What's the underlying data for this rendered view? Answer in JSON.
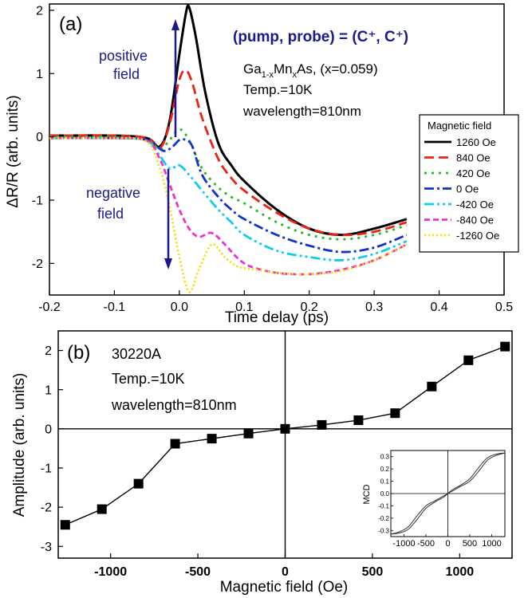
{
  "colors": {
    "annotation": "#1a1a8c",
    "axis": "#000000",
    "arrow": "#1a1a8c"
  },
  "chart_data": [
    {
      "panel": "(a)",
      "type": "line",
      "title": "(pump, probe) = (C⁺, C⁺)",
      "xlabel": "Time delay (ps)",
      "ylabel": "ΔR/R (arb. units)",
      "xlim": [
        -0.2,
        0.5
      ],
      "ylim": [
        -2.5,
        2.1
      ],
      "x_ticks": [
        -0.2,
        -0.1,
        0.0,
        0.1,
        0.2,
        0.3,
        0.4,
        0.5
      ],
      "x_tick_labels": [
        "-0.2",
        "-0.1",
        "0.0",
        "0.1",
        "0.2",
        "0.3",
        "0.4",
        "0.5"
      ],
      "y_ticks": [
        -2,
        -1,
        0,
        1,
        2
      ],
      "y_tick_labels": [
        "-2",
        "-1",
        "0",
        "1",
        "2"
      ],
      "info_lines": [
        "Ga",
        "Mn",
        "As, (x=0.059)",
        "Temp.=10K",
        "wavelength=810nm"
      ],
      "positive_label": [
        "positive",
        "field"
      ],
      "negative_label": [
        "negative",
        "field"
      ],
      "legend_title": "Magnetic field",
      "legend_position": "right",
      "series": [
        {
          "name": "1260 Oe",
          "color": "#000000",
          "dash": "",
          "x": [
            -0.2,
            -0.1,
            -0.05,
            -0.03,
            -0.015,
            0.0,
            0.01,
            0.015,
            0.025,
            0.04,
            0.06,
            0.08,
            0.1,
            0.15,
            0.2,
            0.25,
            0.3,
            0.35
          ],
          "y": [
            0.02,
            0.02,
            -0.02,
            -0.15,
            0.25,
            1.3,
            1.95,
            2.05,
            1.6,
            0.7,
            -0.1,
            -0.45,
            -0.7,
            -1.15,
            -1.45,
            -1.55,
            -1.45,
            -1.3
          ]
        },
        {
          "name": "840 Oe",
          "color": "#ee2211",
          "dash": "12 6",
          "x": [
            -0.2,
            -0.1,
            -0.05,
            -0.03,
            -0.015,
            0.0,
            0.01,
            0.02,
            0.035,
            0.06,
            0.08,
            0.1,
            0.15,
            0.2,
            0.25,
            0.3,
            0.35
          ],
          "y": [
            0.02,
            0.02,
            -0.02,
            -0.18,
            0.2,
            0.9,
            1.05,
            0.85,
            0.3,
            -0.35,
            -0.65,
            -0.85,
            -1.2,
            -1.45,
            -1.55,
            -1.5,
            -1.35
          ]
        },
        {
          "name": "420 Oe",
          "color": "#22bb22",
          "dash": "3 6",
          "x": [
            -0.2,
            -0.1,
            -0.05,
            -0.03,
            -0.015,
            0.0,
            0.015,
            0.035,
            0.06,
            0.08,
            0.1,
            0.15,
            0.2,
            0.25,
            0.3,
            0.35
          ],
          "y": [
            0.0,
            0.0,
            -0.05,
            -0.2,
            -0.05,
            0.12,
            -0.05,
            -0.5,
            -0.8,
            -0.95,
            -1.05,
            -1.35,
            -1.55,
            -1.62,
            -1.55,
            -1.4
          ]
        },
        {
          "name": "0 Oe",
          "color": "#1133cc",
          "dash": "12 4 3 4",
          "x": [
            -0.2,
            -0.1,
            -0.05,
            -0.025,
            -0.01,
            0.0,
            0.01,
            0.02,
            0.035,
            0.06,
            0.08,
            0.1,
            0.15,
            0.2,
            0.25,
            0.3,
            0.35
          ],
          "y": [
            -0.02,
            -0.02,
            -0.05,
            -0.22,
            -0.15,
            -0.05,
            -0.05,
            -0.15,
            -0.6,
            -0.95,
            -1.15,
            -1.3,
            -1.55,
            -1.72,
            -1.82,
            -1.75,
            -1.55
          ]
        },
        {
          "name": "-420 Oe",
          "color": "#11ccee",
          "dash": "12 4 3 4 3 4",
          "x": [
            -0.2,
            -0.1,
            -0.05,
            -0.03,
            -0.015,
            0.0,
            0.015,
            0.035,
            0.06,
            0.08,
            0.1,
            0.15,
            0.2,
            0.25,
            0.3,
            0.35
          ],
          "y": [
            -0.02,
            -0.02,
            -0.06,
            -0.3,
            -0.5,
            -0.45,
            -0.6,
            -0.85,
            -1.15,
            -1.35,
            -1.55,
            -1.8,
            -1.9,
            -1.95,
            -1.85,
            -1.65
          ]
        },
        {
          "name": "-840 Oe",
          "color": "#ee33cc",
          "dash": "7 4",
          "x": [
            -0.2,
            -0.1,
            -0.05,
            -0.03,
            -0.015,
            0.0,
            0.015,
            0.03,
            0.05,
            0.07,
            0.09,
            0.11,
            0.15,
            0.2,
            0.25,
            0.3,
            0.35
          ],
          "y": [
            -0.02,
            -0.02,
            -0.06,
            -0.35,
            -0.75,
            -1.15,
            -1.45,
            -1.58,
            -1.52,
            -1.7,
            -1.92,
            -2.05,
            -2.15,
            -2.17,
            -2.1,
            -1.95,
            -1.7
          ]
        },
        {
          "name": "-1260 Oe",
          "color": "#f2e000",
          "dash": "2 3",
          "x": [
            -0.2,
            -0.1,
            -0.05,
            -0.03,
            -0.015,
            0.0,
            0.015,
            0.03,
            0.05,
            0.07,
            0.09,
            0.12,
            0.15,
            0.2,
            0.25,
            0.3,
            0.35
          ],
          "y": [
            -0.02,
            -0.02,
            -0.08,
            -0.5,
            -1.1,
            -1.9,
            -2.45,
            -2.1,
            -1.7,
            -1.9,
            -2.05,
            -2.1,
            -2.15,
            -2.17,
            -2.12,
            -1.95,
            -1.7
          ]
        }
      ]
    },
    {
      "panel": "(b)",
      "type": "scatter",
      "xlabel": "Magnetic field (Oe)",
      "ylabel": "Amplitude (arb. units)",
      "xlim": [
        -1300,
        1300
      ],
      "ylim": [
        -3.3,
        2.5
      ],
      "x_ticks": [
        -1000,
        -500,
        0,
        500,
        1000
      ],
      "x_tick_labels": [
        "-1000",
        "-500",
        "0",
        "500",
        "1000"
      ],
      "y_ticks": [
        -3,
        -2,
        -1,
        0,
        1,
        2
      ],
      "y_tick_labels": [
        "-3",
        "-2",
        "-1",
        "0",
        "1",
        "2"
      ],
      "info_lines": [
        "30220A",
        "Temp.=10K",
        "wavelength=810nm"
      ],
      "series": [
        {
          "x": [
            -1260,
            -1050,
            -840,
            -630,
            -420,
            -210,
            0,
            210,
            420,
            630,
            840,
            1050,
            1260
          ],
          "y": [
            -2.45,
            -2.05,
            -1.4,
            -0.38,
            -0.25,
            -0.12,
            0.0,
            0.1,
            0.22,
            0.4,
            1.08,
            1.75,
            2.1
          ]
        }
      ]
    },
    {
      "panel": "inset",
      "type": "line",
      "ylabel": "MCD",
      "xlim": [
        -1300,
        1300
      ],
      "ylim": [
        -0.35,
        0.35
      ],
      "x_ticks": [
        -1000,
        -500,
        0,
        500,
        1000
      ],
      "x_tick_labels": [
        "-1000",
        "-500",
        "0",
        "500",
        "1000"
      ],
      "y_ticks": [
        -0.3,
        -0.2,
        -0.1,
        0.0,
        0.1,
        0.2,
        0.3
      ],
      "y_tick_labels": [
        "-0.3",
        "-0.2",
        "-0.1",
        "0.0",
        "0.1",
        "0.2",
        "0.3"
      ],
      "series": [
        {
          "x": [
            -1300,
            -1100,
            -900,
            -700,
            -500,
            -300,
            -100,
            0,
            100,
            300,
            500,
            700,
            900,
            1100,
            1300
          ],
          "y": [
            -0.33,
            -0.31,
            -0.27,
            -0.18,
            -0.1,
            -0.06,
            -0.02,
            0.0,
            0.02,
            0.06,
            0.1,
            0.18,
            0.27,
            0.31,
            0.33
          ]
        },
        {
          "x": [
            -1300,
            -1100,
            -900,
            -700,
            -500,
            -300,
            -100,
            0,
            100,
            300,
            500,
            700,
            900,
            1100,
            1300
          ],
          "y": [
            -0.33,
            -0.32,
            -0.29,
            -0.21,
            -0.12,
            -0.07,
            -0.03,
            0.0,
            0.03,
            0.07,
            0.12,
            0.21,
            0.29,
            0.32,
            0.33
          ]
        }
      ]
    }
  ]
}
